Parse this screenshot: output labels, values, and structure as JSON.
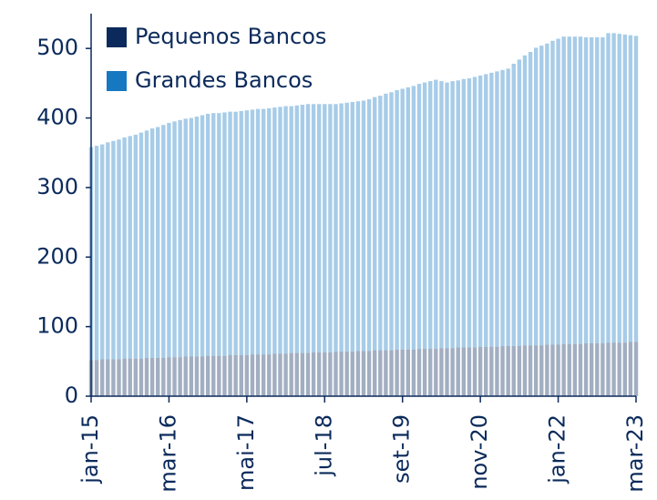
{
  "chart_data": {
    "type": "stacked_bar",
    "categories": [
      "jan-15",
      null,
      null,
      null,
      null,
      null,
      null,
      null,
      null,
      null,
      null,
      null,
      null,
      null,
      "mar-16",
      null,
      null,
      null,
      null,
      null,
      null,
      null,
      null,
      null,
      null,
      null,
      null,
      null,
      "mai-17",
      null,
      null,
      null,
      null,
      null,
      null,
      null,
      null,
      null,
      null,
      null,
      null,
      null,
      "jul-18",
      null,
      null,
      null,
      null,
      null,
      null,
      null,
      null,
      null,
      null,
      null,
      null,
      null,
      "set-19",
      null,
      null,
      null,
      null,
      null,
      null,
      null,
      null,
      null,
      null,
      null,
      null,
      null,
      "nov-20",
      null,
      null,
      null,
      null,
      null,
      null,
      null,
      null,
      null,
      null,
      null,
      null,
      null,
      "jan-22",
      null,
      null,
      null,
      null,
      null,
      null,
      null,
      null,
      null,
      null,
      null,
      null,
      null,
      "mar-23"
    ],
    "series": [
      {
        "name": "Pequenos Bancos",
        "color": "#0b2a5b",
        "values": [
          52,
          52,
          53,
          53,
          53,
          53,
          54,
          54,
          54,
          54,
          55,
          55,
          55,
          55,
          56,
          56,
          56,
          57,
          57,
          57,
          57,
          58,
          58,
          58,
          58,
          59,
          59,
          59,
          59,
          60,
          60,
          60,
          60,
          61,
          61,
          61,
          62,
          62,
          62,
          62,
          63,
          63,
          63,
          63,
          64,
          64,
          64,
          64,
          65,
          65,
          65,
          66,
          66,
          66,
          66,
          67,
          67,
          67,
          67,
          68,
          68,
          68,
          68,
          69,
          69,
          69,
          70,
          70,
          70,
          70,
          71,
          71,
          71,
          71,
          72,
          72,
          72,
          72,
          73,
          73,
          73,
          73,
          74,
          74,
          74,
          75,
          75,
          75,
          75,
          76,
          76,
          76,
          76,
          77,
          77,
          77,
          77,
          78,
          78
        ]
      },
      {
        "name": "Grandes Bancos",
        "color": "#1778c2",
        "values": [
          306,
          308,
          309,
          312,
          314,
          316,
          318,
          320,
          322,
          325,
          327,
          330,
          332,
          335,
          337,
          339,
          341,
          342,
          343,
          345,
          347,
          348,
          349,
          349,
          350,
          350,
          350,
          351,
          352,
          352,
          353,
          353,
          354,
          354,
          355,
          356,
          355,
          356,
          357,
          358,
          357,
          357,
          357,
          357,
          356,
          357,
          358,
          359,
          359,
          360,
          362,
          364,
          366,
          369,
          371,
          373,
          375,
          377,
          379,
          381,
          383,
          385,
          387,
          384,
          382,
          384,
          384,
          386,
          387,
          389,
          390,
          392,
          394,
          396,
          397,
          399,
          406,
          412,
          417,
          422,
          428,
          431,
          433,
          437,
          440,
          442,
          442,
          442,
          442,
          440,
          440,
          440,
          440,
          445,
          445,
          444,
          443,
          441,
          440
        ]
      }
    ],
    "ylim": [
      0,
      550
    ],
    "yticks": [
      0,
      100,
      200,
      300,
      400,
      500
    ],
    "legend": "upper-left"
  }
}
